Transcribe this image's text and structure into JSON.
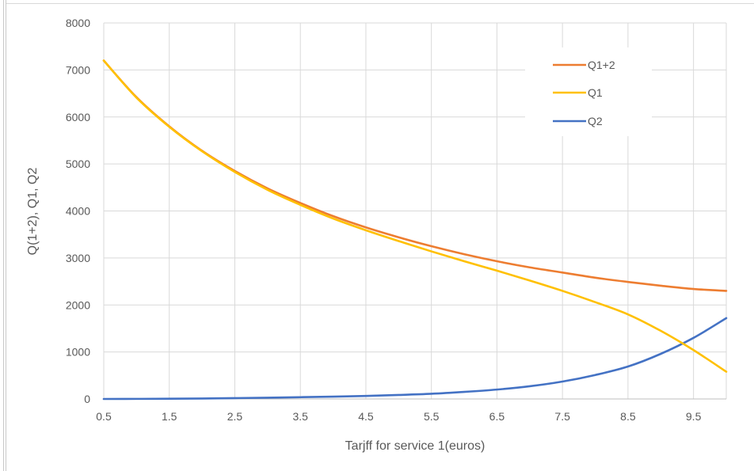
{
  "chart_data": {
    "type": "line",
    "title": "",
    "xlabel": "Tarjff for service 1(euros)",
    "ylabel": "Q(1+2), Q1, Q2",
    "xlim": [
      0.5,
      10
    ],
    "ylim": [
      0,
      8000
    ],
    "x_ticks": [
      "0.5",
      "1.5",
      "2.5",
      "3.5",
      "4.5",
      "5.5",
      "6.5",
      "7.5",
      "8.5",
      "9.5"
    ],
    "x_tick_values": [
      0.5,
      1.5,
      2.5,
      3.5,
      4.5,
      5.5,
      6.5,
      7.5,
      8.5,
      9.5
    ],
    "y_ticks": [
      0,
      1000,
      2000,
      3000,
      4000,
      5000,
      6000,
      7000,
      8000
    ],
    "grid": true,
    "legend_position": "top-right",
    "series": [
      {
        "name": "Q1+2",
        "color": "#ED7D31",
        "x": [
          0.5,
          1.0,
          1.5,
          2.0,
          2.5,
          3.0,
          3.5,
          4.0,
          4.5,
          5.0,
          5.5,
          6.0,
          6.5,
          7.0,
          7.5,
          8.0,
          8.5,
          9.0,
          9.5,
          10.0
        ],
        "values": [
          7200,
          6420,
          5800,
          5280,
          4850,
          4480,
          4170,
          3890,
          3650,
          3440,
          3250,
          3080,
          2930,
          2800,
          2690,
          2580,
          2490,
          2410,
          2340,
          2300
        ]
      },
      {
        "name": "Q1",
        "color": "#FFC000",
        "x": [
          0.5,
          1.0,
          1.5,
          2.0,
          2.5,
          3.0,
          3.5,
          4.0,
          4.5,
          5.0,
          5.5,
          6.0,
          6.5,
          7.0,
          7.5,
          8.0,
          8.5,
          9.0,
          9.5,
          10.0
        ],
        "values": [
          7200,
          6410,
          5790,
          5270,
          4830,
          4450,
          4130,
          3840,
          3590,
          3360,
          3140,
          2930,
          2730,
          2520,
          2300,
          2060,
          1800,
          1450,
          1040,
          580
        ]
      },
      {
        "name": "Q2",
        "color": "#4472C4",
        "x": [
          0.5,
          1.0,
          1.5,
          2.0,
          2.5,
          3.0,
          3.5,
          4.0,
          4.5,
          5.0,
          5.5,
          6.0,
          6.5,
          7.0,
          7.5,
          8.0,
          8.5,
          9.0,
          9.5,
          10.0
        ],
        "values": [
          0,
          2,
          5,
          10,
          18,
          27,
          38,
          50,
          65,
          85,
          110,
          150,
          200,
          270,
          370,
          510,
          690,
          960,
          1300,
          1720
        ]
      }
    ]
  }
}
